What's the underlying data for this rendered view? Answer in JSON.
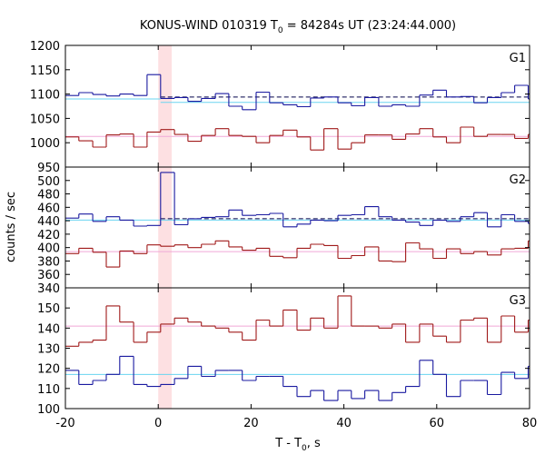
{
  "chart_data": {
    "type": "line",
    "title": "KONUS-WIND 010319 T",
    "title_sub": "0",
    "title_rest": " = 84284s UT (23:24:44.000)",
    "xlabel": "T - T",
    "xlabel_sub": "0",
    "xlabel_rest": ", s",
    "ylabel": "counts / sec",
    "xlim": [
      -20,
      80
    ],
    "xticks": [
      -20,
      0,
      20,
      40,
      60,
      80
    ],
    "highlight_x": [
      0,
      2.9
    ],
    "colors": {
      "blue": "#1a1aa0",
      "red": "#a01a1a",
      "cyan": "#6ad4f0",
      "pink": "#f0a8d8",
      "dash": "#00004a",
      "band": "#fde0e2"
    },
    "panels": [
      {
        "name": "G1",
        "ylim": [
          950,
          1200
        ],
        "yticks": [
          950,
          1000,
          1050,
          1100,
          1150,
          1200
        ],
        "step_edges": [
          -20,
          -17.1,
          -14.1,
          -11.2,
          -8.3,
          -5.3,
          -2.4,
          0.5,
          3.5,
          6.4,
          9.3,
          12.3,
          15.2,
          18.1,
          21.1,
          24,
          26.9,
          29.9,
          32.8,
          35.7,
          38.7,
          41.6,
          44.5,
          47.5,
          50.4,
          53.3,
          56.3,
          59.2,
          62.1,
          65.1,
          68,
          70.9,
          73.9,
          76.8,
          79.7
        ],
        "blue": [
          1097,
          1103,
          1099,
          1096,
          1100,
          1097,
          1140,
          1091,
          1093,
          1085,
          1091,
          1101,
          1075,
          1068,
          1104,
          1082,
          1078,
          1074,
          1092,
          1094,
          1082,
          1076,
          1093,
          1075,
          1078,
          1075,
          1098,
          1108,
          1094,
          1095,
          1082,
          1093,
          1103,
          1118,
          1090
        ],
        "red": [
          1012,
          1004,
          991,
          1016,
          1018,
          991,
          1022,
          1027,
          1017,
          1003,
          1015,
          1029,
          1015,
          1013,
          1000,
          1015,
          1026,
          1012,
          985,
          1029,
          987,
          1000,
          1016,
          1016,
          1007,
          1018,
          1029,
          1012,
          1000,
          1032,
          1013,
          1017,
          1017,
          1009,
          1017
        ],
        "cyan_level": 1083,
        "cyan_pre": 1090,
        "dashed_level": 1094,
        "pink_level": 1013
      },
      {
        "name": "G2",
        "ylim": [
          340,
          520
        ],
        "yticks": [
          340,
          360,
          380,
          400,
          420,
          440,
          460,
          480,
          500
        ],
        "step_edges": [
          -20,
          -17.1,
          -14.1,
          -11.2,
          -8.3,
          -5.3,
          -2.4,
          0.5,
          3.5,
          6.4,
          9.3,
          12.3,
          15.2,
          18.1,
          21.1,
          24,
          26.9,
          29.9,
          32.8,
          35.7,
          38.7,
          41.6,
          44.5,
          47.5,
          50.4,
          53.3,
          56.3,
          59.2,
          62.1,
          65.1,
          68,
          70.9,
          73.9,
          76.8,
          79.7
        ],
        "blue": [
          444,
          450,
          439,
          446,
          441,
          432,
          433,
          512,
          434,
          443,
          445,
          446,
          456,
          448,
          449,
          451,
          431,
          435,
          441,
          440,
          448,
          449,
          461,
          446,
          441,
          438,
          433,
          441,
          439,
          446,
          452,
          431,
          449,
          439,
          436
        ],
        "red": [
          391,
          399,
          393,
          371,
          395,
          391,
          404,
          402,
          404,
          400,
          405,
          410,
          401,
          396,
          399,
          387,
          385,
          399,
          405,
          403,
          384,
          388,
          401,
          380,
          379,
          407,
          398,
          384,
          398,
          391,
          394,
          389,
          398,
          399,
          410
        ],
        "cyan_level": 441,
        "dashed_level": 443,
        "pink_level": 394
      },
      {
        "name": "G3",
        "ylim": [
          100,
          160
        ],
        "yticks": [
          100,
          110,
          120,
          130,
          140,
          150
        ],
        "step_edges": [
          -20,
          -17.1,
          -14.1,
          -11.2,
          -8.3,
          -5.3,
          -2.4,
          0.5,
          3.5,
          6.4,
          9.3,
          12.3,
          15.2,
          18.1,
          21.1,
          24,
          26.9,
          29.9,
          32.8,
          35.7,
          38.7,
          41.6,
          44.5,
          47.5,
          50.4,
          53.3,
          56.3,
          59.2,
          62.1,
          65.1,
          68,
          70.9,
          73.9,
          76.8,
          79.7
        ],
        "blue": [
          119,
          112,
          114,
          117,
          126,
          112,
          111,
          112,
          115,
          121,
          116,
          119,
          119,
          114,
          116,
          116,
          111,
          106,
          109,
          104,
          109,
          105,
          109,
          104,
          108,
          111,
          124,
          117,
          106,
          114,
          114,
          107,
          118,
          115,
          121
        ],
        "red": [
          131,
          133,
          134,
          151,
          143,
          133,
          138,
          142,
          145,
          143,
          141,
          140,
          138,
          134,
          144,
          141,
          149,
          139,
          145,
          140,
          156,
          141,
          141,
          140,
          142,
          133,
          142,
          136,
          133,
          144,
          145,
          133,
          146,
          138,
          144
        ],
        "cyan_level": 117,
        "pink_level": 141
      }
    ]
  }
}
